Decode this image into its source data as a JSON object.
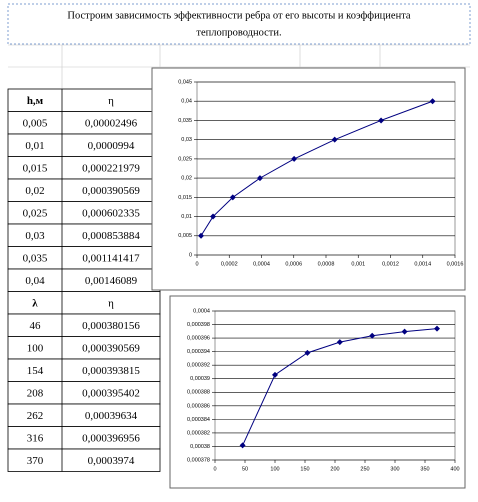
{
  "header": {
    "title_line1": "Построим зависимость эффективности ребра от его высоты и коэффициента",
    "title_line2": "теплопроводности."
  },
  "tables": [
    {
      "header": [
        "h,м",
        "η"
      ],
      "rows": [
        [
          "0,005",
          "0,00002496"
        ],
        [
          "0,01",
          "0,0000994"
        ],
        [
          "0,015",
          "0,000221979"
        ],
        [
          "0,02",
          "0,000390569"
        ],
        [
          "0,025",
          "0,000602335"
        ],
        [
          "0,03",
          "0,000853884"
        ],
        [
          "0,035",
          "0,001141417"
        ],
        [
          "0,04",
          "0,00146089"
        ]
      ]
    },
    {
      "header": [
        "λ",
        "η"
      ],
      "rows": [
        [
          "46",
          "0,000380156"
        ],
        [
          "100",
          "0,000390569"
        ],
        [
          "154",
          "0,000393815"
        ],
        [
          "208",
          "0,000395402"
        ],
        [
          "262",
          "0,00039634"
        ],
        [
          "316",
          "0,000396956"
        ],
        [
          "370",
          "0,0003974"
        ]
      ]
    }
  ],
  "chart_data": [
    {
      "type": "line",
      "color": "#000080",
      "grid": true,
      "x": [
        2.496e-05,
        9.94e-05,
        0.000221979,
        0.000390569,
        0.000602335,
        0.000853884,
        0.001141417,
        0.00146089
      ],
      "values": [
        0.005,
        0.01,
        0.015,
        0.02,
        0.025,
        0.03,
        0.035,
        0.04
      ],
      "xlim": [
        0,
        0.0016
      ],
      "ylim": [
        0,
        0.045
      ],
      "xticks": [
        0,
        {
          "value": 0.0002,
          "label": "0,0002"
        },
        {
          "value": 0.0004,
          "label": "0,0004"
        },
        {
          "value": 0.0006,
          "label": "0,0006"
        },
        {
          "value": 0.0008,
          "label": "0,0008"
        },
        {
          "value": 0.001,
          "label": "0,001"
        },
        {
          "value": 0.0012,
          "label": "0,0012"
        },
        {
          "value": 0.0014,
          "label": "0,0014"
        },
        {
          "value": 0.0016,
          "label": "0,0016"
        }
      ],
      "yticks": [
        0,
        {
          "value": 0.005,
          "label": "0,005"
        },
        {
          "value": 0.01,
          "label": "0,01"
        },
        {
          "value": 0.015,
          "label": "0,015"
        },
        {
          "value": 0.02,
          "label": "0,02"
        },
        {
          "value": 0.025,
          "label": "0,025"
        },
        {
          "value": 0.03,
          "label": "0,03"
        },
        {
          "value": 0.035,
          "label": "0,035"
        },
        {
          "value": 0.04,
          "label": "0,04"
        },
        {
          "value": 0.045,
          "label": "0,045"
        }
      ]
    },
    {
      "type": "line",
      "color": "#000080",
      "grid": true,
      "x": [
        46,
        100,
        154,
        208,
        262,
        316,
        370
      ],
      "values": [
        0.000380156,
        0.000390569,
        0.000393815,
        0.000395402,
        0.00039634,
        0.000396956,
        0.0003974
      ],
      "xlim": [
        0,
        400
      ],
      "ylim": [
        0.000378,
        0.0004
      ],
      "xticks": [
        0,
        50,
        100,
        150,
        200,
        250,
        300,
        350,
        400
      ],
      "yticks": [
        {
          "value": 0.000378,
          "label": "0,000378"
        },
        {
          "value": 0.00038,
          "label": "0,00038"
        },
        {
          "value": 0.000382,
          "label": "0,000382"
        },
        {
          "value": 0.000384,
          "label": "0,000384"
        },
        {
          "value": 0.000386,
          "label": "0,000386"
        },
        {
          "value": 0.000388,
          "label": "0,000388"
        },
        {
          "value": 0.00039,
          "label": "0,00039"
        },
        {
          "value": 0.000392,
          "label": "0,000392"
        },
        {
          "value": 0.000394,
          "label": "0,000394"
        },
        {
          "value": 0.000396,
          "label": "0,000396"
        },
        {
          "value": 0.000398,
          "label": "0,000398"
        },
        {
          "value": 0.0004,
          "label": "0,0004"
        }
      ]
    }
  ]
}
